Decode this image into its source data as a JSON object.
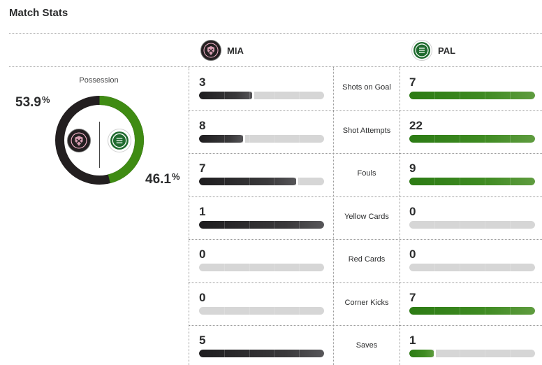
{
  "header": {
    "title": "Match Stats"
  },
  "teams": {
    "home": {
      "abbr": "MIA",
      "color": "#231f20",
      "logo_icon": "inter-miami-crest-icon"
    },
    "away": {
      "abbr": "PAL",
      "color": "#3a8a1c",
      "logo_icon": "palmeiras-crest-icon"
    }
  },
  "possession": {
    "label": "Possession",
    "home_value": "53.9",
    "away_value": "46.1",
    "unit": "%",
    "home_fraction": 0.539,
    "away_fraction": 0.461
  },
  "stats": [
    {
      "label": "Shots on Goal",
      "home": "3",
      "away": "7",
      "home_fill": 0.43,
      "away_fill": 1.0
    },
    {
      "label": "Shot Attempts",
      "home": "8",
      "away": "22",
      "home_fill": 0.36,
      "away_fill": 1.0
    },
    {
      "label": "Fouls",
      "home": "7",
      "away": "9",
      "home_fill": 0.78,
      "away_fill": 1.0
    },
    {
      "label": "Yellow Cards",
      "home": "1",
      "away": "0",
      "home_fill": 1.0,
      "away_fill": 0.0
    },
    {
      "label": "Red Cards",
      "home": "0",
      "away": "0",
      "home_fill": 0.0,
      "away_fill": 0.0
    },
    {
      "label": "Corner Kicks",
      "home": "0",
      "away": "7",
      "home_fill": 0.0,
      "away_fill": 1.0
    },
    {
      "label": "Saves",
      "home": "5",
      "away": "1",
      "home_fill": 1.0,
      "away_fill": 0.2
    }
  ],
  "colors": {
    "home_bar": "#231f20",
    "away_bar": "#3a8a1c",
    "empty_bar": "#d6d6d6",
    "divider": "#9a9a9a"
  }
}
